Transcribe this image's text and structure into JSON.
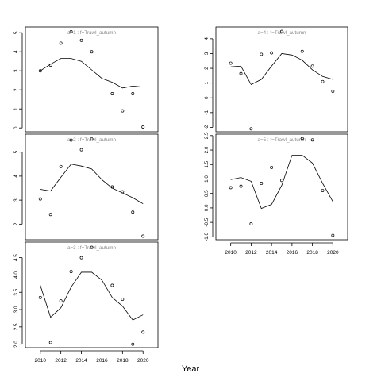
{
  "xlabel": "Year",
  "chart_data": [
    {
      "type": "scatter",
      "title": "a=1 : f=Trawl_autumn",
      "x": [
        2010,
        2011,
        2012,
        2013,
        2014,
        2015,
        2016,
        2017,
        2018,
        2019,
        2020
      ],
      "ylim": [
        -0.2,
        5.3
      ],
      "yticks": [
        0,
        1,
        2,
        3,
        4,
        5
      ],
      "series": [
        {
          "kind": "points",
          "x": [
            2010,
            2011,
            2012,
            2013,
            2014,
            2015,
            2017,
            2018,
            2019,
            2020
          ],
          "values": [
            3.0,
            3.3,
            4.45,
            5.05,
            4.6,
            4.0,
            1.8,
            0.9,
            1.8,
            0.05
          ]
        },
        {
          "kind": "line",
          "values": [
            3.0,
            3.35,
            3.65,
            3.65,
            3.5,
            3.05,
            2.6,
            2.4,
            2.1,
            2.2,
            2.15
          ]
        }
      ]
    },
    {
      "type": "scatter",
      "title": "a=4 : f=Trawl_autumn",
      "x": [
        2010,
        2011,
        2012,
        2013,
        2014,
        2015,
        2016,
        2017,
        2018,
        2019,
        2020
      ],
      "ylim": [
        -2.3,
        4.8
      ],
      "yticks": [
        -2,
        -1,
        0,
        1,
        2,
        3,
        4
      ],
      "series": [
        {
          "kind": "points",
          "x": [
            2010,
            2011,
            2012,
            2013,
            2014,
            2015,
            2017,
            2018,
            2019,
            2020
          ],
          "values": [
            2.35,
            1.65,
            -2.1,
            2.95,
            3.05,
            4.5,
            3.15,
            2.15,
            1.1,
            0.45
          ]
        },
        {
          "kind": "line",
          "values": [
            2.1,
            2.15,
            0.9,
            1.25,
            2.15,
            3.0,
            2.9,
            2.55,
            1.9,
            1.45,
            1.25
          ]
        }
      ]
    },
    {
      "type": "scatter",
      "title": "a=2 : f=Trawl_autumn",
      "x": [
        2010,
        2011,
        2012,
        2013,
        2014,
        2015,
        2016,
        2017,
        2018,
        2019,
        2020
      ],
      "ylim": [
        1.35,
        5.75
      ],
      "yticks": [
        2,
        3,
        4,
        5
      ],
      "series": [
        {
          "kind": "points",
          "x": [
            2010,
            2011,
            2012,
            2013,
            2014,
            2015,
            2017,
            2018,
            2019,
            2020
          ],
          "values": [
            3.05,
            2.4,
            4.4,
            5.5,
            5.1,
            5.55,
            3.55,
            3.35,
            2.5,
            1.5
          ]
        },
        {
          "kind": "line",
          "values": [
            3.45,
            3.38,
            3.95,
            4.5,
            4.42,
            4.3,
            3.85,
            3.5,
            3.3,
            3.1,
            2.85
          ]
        }
      ]
    },
    {
      "type": "scatter",
      "title": "a=5 : f=Trawl_autumn",
      "x": [
        2010,
        2011,
        2012,
        2013,
        2014,
        2015,
        2016,
        2017,
        2018,
        2019,
        2020
      ],
      "ylim": [
        -1.1,
        2.55
      ],
      "yticks": [
        -1.0,
        -0.5,
        0.0,
        0.5,
        1.0,
        1.5,
        2.0,
        2.5
      ],
      "ytick_labels": [
        "-1.0",
        "-0.5",
        "0.0",
        "0.5",
        "1.0",
        "1.5",
        "2.0",
        "2.5"
      ],
      "series": [
        {
          "kind": "points",
          "x": [
            2010,
            2011,
            2012,
            2013,
            2014,
            2015,
            2017,
            2018,
            2019,
            2020
          ],
          "values": [
            0.7,
            0.75,
            -0.55,
            0.85,
            1.4,
            0.95,
            2.4,
            2.35,
            0.6,
            -0.95
          ]
        },
        {
          "kind": "line",
          "values": [
            0.98,
            1.05,
            0.92,
            -0.02,
            0.12,
            0.78,
            1.82,
            1.82,
            1.55,
            0.85,
            0.22
          ]
        }
      ]
    },
    {
      "type": "scatter",
      "title": "a=3 : f=Trawl_autumn",
      "x": [
        2010,
        2011,
        2012,
        2013,
        2014,
        2015,
        2016,
        2017,
        2018,
        2019,
        2020
      ],
      "xticks": [
        2010,
        2012,
        2014,
        2016,
        2018,
        2020
      ],
      "ylim": [
        1.9,
        4.95
      ],
      "yticks": [
        2.0,
        2.5,
        3.0,
        3.5,
        4.0,
        4.5
      ],
      "ytick_labels": [
        "2.0",
        "2.5",
        "3.0",
        "3.5",
        "4.0",
        "4.5"
      ],
      "series": [
        {
          "kind": "points",
          "x": [
            2010,
            2011,
            2012,
            2013,
            2014,
            2015,
            2017,
            2018,
            2019,
            2020
          ],
          "values": [
            3.35,
            2.05,
            3.25,
            4.1,
            4.5,
            4.8,
            3.7,
            3.3,
            2.0,
            2.35
          ]
        },
        {
          "kind": "line",
          "values": [
            3.7,
            2.78,
            3.05,
            3.65,
            4.08,
            4.08,
            3.85,
            3.35,
            3.1,
            2.7,
            2.85
          ]
        }
      ]
    },
    {
      "type": "scatter",
      "x": [],
      "xticks": [
        2010,
        2012,
        2014,
        2016,
        2018,
        2020
      ]
    }
  ]
}
